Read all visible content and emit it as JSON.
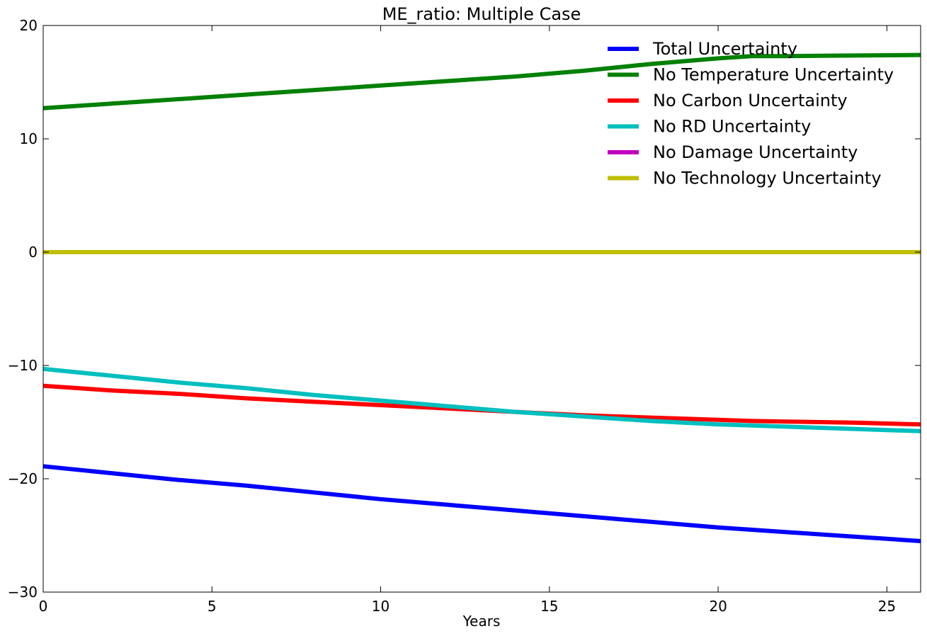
{
  "chart_data": {
    "type": "line",
    "title": "ME_ratio: Multiple Case",
    "xlabel": "Years",
    "ylabel": "",
    "xlim": [
      0,
      26
    ],
    "ylim": [
      -30,
      20
    ],
    "xticks": [
      0,
      5,
      10,
      15,
      20,
      25
    ],
    "yticks": [
      -30,
      -20,
      -10,
      0,
      10,
      20
    ],
    "xtick_labels": [
      "0",
      "5",
      "10",
      "15",
      "20",
      "25"
    ],
    "ytick_labels": [
      "−30",
      "−20",
      "−10",
      "0",
      "10",
      "20"
    ],
    "grid": false,
    "legend_position": "top-right",
    "x": [
      0,
      2,
      4,
      6,
      8,
      10,
      12,
      14,
      16,
      18,
      20,
      21,
      22,
      24,
      26
    ],
    "series": [
      {
        "name": "Total Uncertainty",
        "color": "#0000ff",
        "values": [
          -18.9,
          -19.5,
          -20.1,
          -20.6,
          -21.2,
          -21.8,
          -22.3,
          -22.8,
          -23.3,
          -23.8,
          -24.3,
          -24.5,
          -24.7,
          -25.1,
          -25.5
        ]
      },
      {
        "name": "No Temperature Uncertainty",
        "color": "#008000",
        "values": [
          12.7,
          13.1,
          13.5,
          13.9,
          14.3,
          14.7,
          15.1,
          15.5,
          16.0,
          16.6,
          17.1,
          17.3,
          17.3,
          17.35,
          17.4
        ]
      },
      {
        "name": "No Carbon Uncertainty",
        "color": "#ff0000",
        "values": [
          -11.8,
          -12.2,
          -12.5,
          -12.9,
          -13.2,
          -13.5,
          -13.8,
          -14.1,
          -14.4,
          -14.6,
          -14.8,
          -14.9,
          -14.95,
          -15.05,
          -15.2
        ]
      },
      {
        "name": "No RD Uncertainty",
        "color": "#00bfbf",
        "values": [
          -10.3,
          -10.9,
          -11.5,
          -12.0,
          -12.6,
          -13.1,
          -13.6,
          -14.1,
          -14.5,
          -14.9,
          -15.2,
          -15.3,
          -15.4,
          -15.6,
          -15.8
        ]
      },
      {
        "name": "No Damage Uncertainty",
        "color": "#bf00bf",
        "values": [
          0,
          0,
          0,
          0,
          0,
          0,
          0,
          0,
          0,
          0,
          0,
          0,
          0,
          0,
          0
        ]
      },
      {
        "name": "No Technology Uncertainty",
        "color": "#bfbf00",
        "values": [
          0,
          0,
          0,
          0,
          0,
          0,
          0,
          0,
          0,
          0,
          0,
          0,
          0,
          0,
          0
        ]
      }
    ]
  }
}
